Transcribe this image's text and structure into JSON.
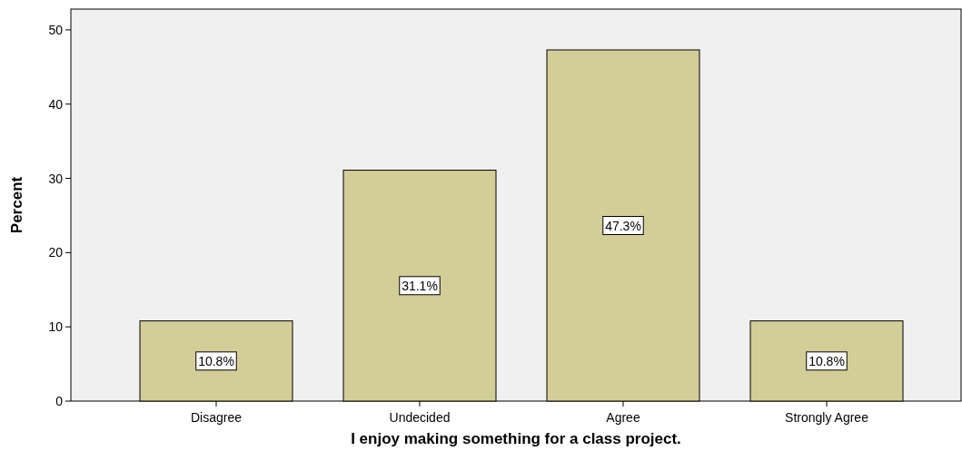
{
  "chart_data": {
    "type": "bar",
    "xlabel": "I enjoy making something for a class project.",
    "ylabel": "Percent",
    "categories": [
      "Disagree",
      "Undecided",
      "Agree",
      "Strongly Agree"
    ],
    "values": [
      10.8,
      31.1,
      47.3,
      10.8
    ],
    "value_labels": [
      "10.8%",
      "31.1%",
      "47.3%",
      "10.8%"
    ],
    "color": "#d3ce97",
    "ylim": [
      0,
      52.8
    ],
    "yticks": [
      0,
      10,
      20,
      30,
      40,
      50
    ],
    "grid": false
  }
}
